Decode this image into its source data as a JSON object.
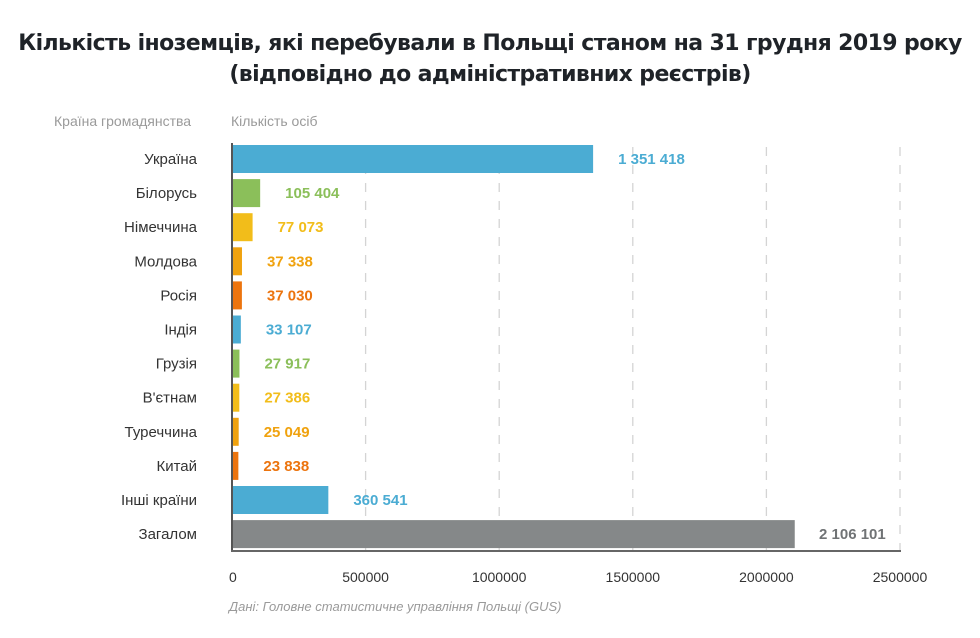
{
  "chart_data": {
    "type": "bar",
    "orientation": "horizontal",
    "title_lines": [
      "Кількість іноземців, які перебували в Польщі станом на 31 грудня 2019 року",
      "(відповідно до адміністративних реєстрів)"
    ],
    "category_axis_label": "Країна громадянства",
    "value_axis_label": "Кількість осіб",
    "categories": [
      "Україна",
      "Білорусь",
      "Німеччина",
      "Молдова",
      "Росія",
      "Індія",
      "Грузія",
      "В'єтнам",
      "Туреччина",
      "Китай",
      "Інші країни",
      "Загалом"
    ],
    "values": [
      1351418,
      105404,
      77073,
      37338,
      37030,
      33107,
      27917,
      27386,
      25049,
      23838,
      360541,
      2106101
    ],
    "value_labels": [
      "1 351 418",
      "105 404",
      "77 073",
      "37 338",
      "37 030",
      "33 107",
      "27 917",
      "27 386",
      "25 049",
      "23 838",
      "360 541",
      "2 106 101"
    ],
    "colors": [
      "#4bacd3",
      "#8bbf5a",
      "#f2bd1a",
      "#f0a20e",
      "#ec740e",
      "#4bacd3",
      "#8bbf5a",
      "#f2bd1a",
      "#f0a20e",
      "#ec740e",
      "#4bacd3",
      "#858889"
    ],
    "x_ticks": [
      0,
      500000,
      1000000,
      1500000,
      2000000,
      2500000
    ],
    "x_tick_labels": [
      "0",
      "500000",
      "1000000",
      "1500000",
      "2000000",
      "2500000"
    ],
    "xlim": [
      0,
      2500000
    ],
    "grid": "vertical dashed",
    "legend": "none",
    "source": "Дані: Головне статистичне управління Польщі (GUS)"
  }
}
